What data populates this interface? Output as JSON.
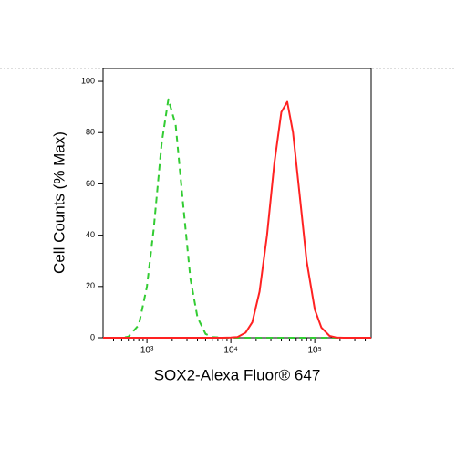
{
  "chart_data": {
    "type": "line",
    "x_label": "SOX2-Alexa Fluor® 647",
    "y_label": "Cell Counts (% Max)",
    "x": [
      300,
      400,
      500,
      600,
      800,
      1000,
      1200,
      1500,
      1800,
      2200,
      2700,
      3300,
      4000,
      5000,
      6000,
      8000,
      10000,
      12000,
      15000,
      18000,
      22000,
      27000,
      33000,
      40000,
      47000,
      55000,
      65000,
      80000,
      100000,
      120000,
      150000,
      180000,
      220000,
      270000,
      330000,
      470000
    ],
    "series": [
      {
        "color": "#33cc33",
        "dashed": true,
        "values": [
          0,
          0,
          0,
          0.4,
          5,
          20,
          42,
          76,
          93,
          83,
          52,
          23,
          8,
          1.5,
          0.3,
          0,
          0,
          0,
          0,
          0,
          0,
          0,
          0,
          0,
          0,
          0,
          0,
          0,
          0,
          0,
          0,
          0,
          0,
          0,
          0,
          0
        ]
      },
      {
        "color": "#ff2222",
        "dashed": false,
        "values": [
          0,
          0,
          0,
          0,
          0,
          0,
          0,
          0,
          0,
          0,
          0,
          0,
          0,
          0,
          0,
          0,
          0.1,
          0.3,
          2,
          6,
          18,
          40,
          68,
          88,
          92,
          80,
          58,
          30,
          11,
          4,
          0.7,
          0.1,
          0,
          0,
          0,
          0
        ]
      }
    ],
    "log_x": true,
    "xlim": [
      300,
      470000
    ],
    "xticks": [
      {
        "value": 1000,
        "label": "10³"
      },
      {
        "value": 10000,
        "label": "10⁴"
      },
      {
        "value": 100000,
        "label": "10⁵"
      }
    ],
    "ylim": [
      0,
      105
    ],
    "yticks": [
      0,
      20,
      40,
      60,
      80,
      100
    ]
  }
}
